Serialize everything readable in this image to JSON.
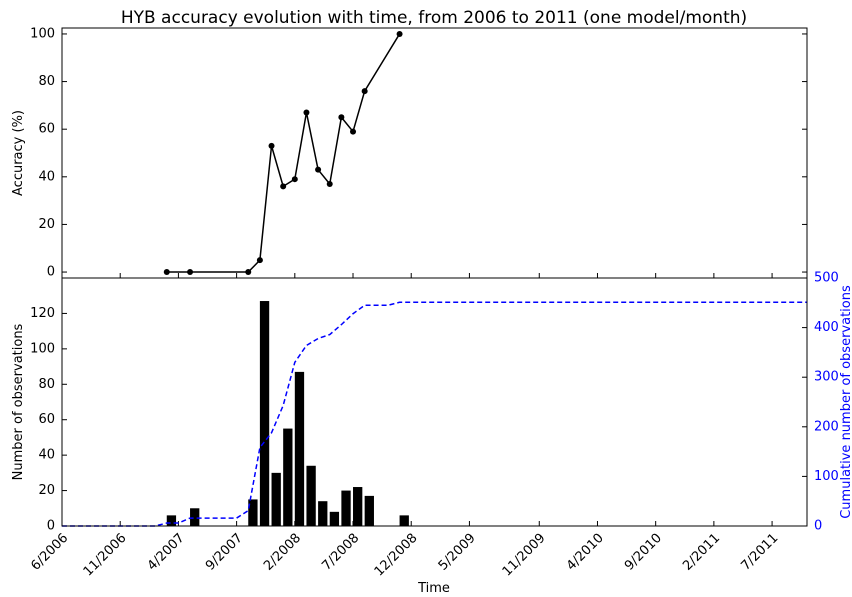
{
  "chart_data": [
    {
      "type": "line",
      "title": "HYB accuracy evolution with time, from 2006 to 2011 (one model/month)",
      "y_label": "Accuracy (%)",
      "color": "#000000",
      "x": [
        "3/2007",
        "5/2007",
        "10/2007",
        "11/2007",
        "12/2007",
        "1/2008",
        "2/2008",
        "3/2008",
        "4/2008",
        "5/2008",
        "6/2008",
        "7/2008",
        "8/2008",
        "11/2008"
      ],
      "values": [
        0,
        0,
        0,
        5,
        53,
        36,
        39,
        67,
        43,
        37,
        65,
        59,
        76,
        100
      ],
      "ylim": [
        -2.5,
        102.5
      ],
      "yticks": [
        0,
        20,
        40,
        60,
        80,
        100
      ]
    },
    {
      "type": "bar",
      "x_label": "Time",
      "y_label": "Number of observations",
      "y2_label": "Cumulative number of observations",
      "xlim": [
        "6/2006",
        "10/2011"
      ],
      "xticks": [
        "6/2006",
        "11/2006",
        "4/2007",
        "9/2007",
        "2/2008",
        "7/2008",
        "12/2008",
        "5/2009",
        "11/2009",
        "4/2010",
        "9/2010",
        "2/2011",
        "7/2011"
      ],
      "ylim": [
        0,
        140
      ],
      "yticks": [
        0,
        20,
        40,
        60,
        80,
        100,
        120
      ],
      "y2lim": [
        0,
        500
      ],
      "y2ticks": [
        0,
        100,
        200,
        300,
        400,
        500
      ],
      "y2_color": "#0000ff",
      "series": [
        {
          "type": "bar",
          "color": "#000000",
          "x": [
            "3/2007",
            "5/2007",
            "10/2007",
            "11/2007",
            "12/2007",
            "1/2008",
            "2/2008",
            "3/2008",
            "4/2008",
            "5/2008",
            "6/2008",
            "7/2008",
            "8/2008",
            "11/2008"
          ],
          "values": [
            6,
            10,
            15,
            127,
            30,
            55,
            87,
            34,
            14,
            8,
            20,
            22,
            17,
            6
          ]
        },
        {
          "type": "line",
          "axis": "y2",
          "color": "#0000ff",
          "dashed": true,
          "x": [
            "6/2006",
            "2/2007",
            "3/2007",
            "4/2007",
            "5/2007",
            "9/2007",
            "10/2007",
            "11/2007",
            "12/2007",
            "1/2008",
            "2/2008",
            "3/2008",
            "4/2008",
            "5/2008",
            "6/2008",
            "7/2008",
            "8/2008",
            "10/2008",
            "11/2008",
            "10/2011"
          ],
          "values": [
            0,
            0,
            6,
            6,
            16,
            16,
            31,
            158,
            188,
            243,
            330,
            364,
            378,
            386,
            406,
            428,
            445,
            445,
            451,
            451
          ]
        }
      ]
    }
  ]
}
